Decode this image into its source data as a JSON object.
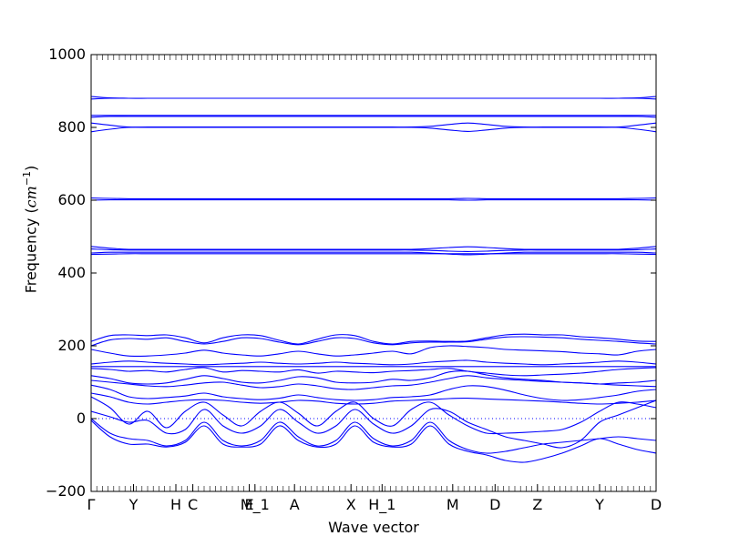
{
  "chart_data": {
    "type": "line",
    "xlabel": "Wave vector",
    "ylabel_prefix": "Frequency (",
    "ylabel_unit": "cm",
    "ylabel_exp": "−1",
    "ylabel_suffix": ")",
    "ylim": [
      -200,
      1000
    ],
    "yticks": [
      -200,
      0,
      200,
      400,
      600,
      800,
      1000
    ],
    "ytick_labels": [
      "−200",
      "0",
      "200",
      "400",
      "600",
      "800",
      "1000"
    ],
    "xlim": [
      0,
      20
    ],
    "xticks": [
      {
        "label": "Γ",
        "x": 0
      },
      {
        "label": "Y",
        "x": 1.5
      },
      {
        "label": "H",
        "x": 3.0
      },
      {
        "label": "C",
        "x": 3.6
      },
      {
        "label": "E",
        "x": 5.6
      },
      {
        "label": "M_1",
        "x": 5.8
      },
      {
        "label": "A",
        "x": 7.2
      },
      {
        "label": "X",
        "x": 9.2
      },
      {
        "label": "H_1",
        "x": 10.3
      },
      {
        "label": "M",
        "x": 12.8
      },
      {
        "label": "D",
        "x": 14.3
      },
      {
        "label": "Z",
        "x": 15.8
      },
      {
        "label": "Y",
        "x": 18.0
      },
      {
        "label": "D",
        "x": 20.0
      }
    ],
    "zero_line": true,
    "line_color": "#0000ff",
    "series": [
      {
        "y": [
          885,
          881,
          880,
          880,
          880,
          880,
          880,
          880,
          880,
          880,
          880,
          880,
          880,
          880,
          880,
          880,
          880,
          880,
          880,
          880,
          880,
          880,
          880,
          880,
          880,
          880,
          880,
          880,
          880,
          881,
          885
        ]
      },
      {
        "y": [
          878,
          880,
          880,
          880,
          880,
          880,
          880,
          880,
          880,
          880,
          880,
          880,
          880,
          880,
          880,
          880,
          880,
          880,
          880,
          880,
          880,
          880,
          880,
          880,
          880,
          880,
          880,
          880,
          880,
          880,
          878
        ]
      },
      {
        "y": [
          833,
          833,
          833,
          833,
          833,
          833,
          833,
          833,
          833,
          833,
          833,
          833,
          833,
          833,
          833,
          833,
          833,
          833,
          833,
          833,
          833,
          833,
          833,
          833,
          833,
          833,
          833,
          833,
          833,
          833,
          833
        ]
      },
      {
        "y": [
          828,
          830,
          830,
          830,
          830,
          830,
          830,
          830,
          830,
          830,
          830,
          830,
          830,
          830,
          830,
          830,
          830,
          830,
          830,
          830,
          830,
          830,
          830,
          830,
          830,
          830,
          830,
          830,
          830,
          830,
          828
        ]
      },
      {
        "y": [
          812,
          806,
          801,
          801,
          801,
          801,
          801,
          801,
          801,
          801,
          801,
          801,
          801,
          801,
          801,
          801,
          801,
          801,
          803,
          808,
          812,
          808,
          803,
          801,
          801,
          801,
          801,
          801,
          801,
          806,
          812
        ]
      },
      {
        "y": [
          788,
          795,
          800,
          800,
          800,
          800,
          800,
          800,
          800,
          800,
          800,
          800,
          800,
          800,
          800,
          800,
          800,
          800,
          798,
          793,
          789,
          793,
          798,
          800,
          800,
          800,
          800,
          800,
          800,
          795,
          788
        ]
      },
      {
        "y": [
          606,
          605,
          604,
          604,
          604,
          604,
          604,
          604,
          604,
          604,
          604,
          604,
          604,
          604,
          604,
          604,
          604,
          604,
          604,
          604,
          605,
          604,
          604,
          604,
          604,
          604,
          604,
          604,
          604,
          605,
          606
        ]
      },
      {
        "y": [
          600,
          601,
          601,
          601,
          601,
          601,
          601,
          601,
          601,
          601,
          601,
          601,
          601,
          601,
          601,
          601,
          601,
          601,
          601,
          601,
          600,
          601,
          601,
          601,
          601,
          601,
          601,
          601,
          601,
          601,
          600
        ]
      },
      {
        "y": [
          473,
          468,
          465,
          465,
          465,
          465,
          465,
          465,
          465,
          465,
          465,
          465,
          465,
          465,
          465,
          465,
          465,
          465,
          467,
          470,
          472,
          470,
          467,
          465,
          465,
          465,
          465,
          465,
          465,
          468,
          473
        ]
      },
      {
        "y": [
          466,
          464,
          463,
          463,
          463,
          463,
          463,
          463,
          463,
          463,
          463,
          463,
          463,
          463,
          463,
          463,
          463,
          463,
          462,
          460,
          459,
          460,
          462,
          463,
          463,
          463,
          463,
          463,
          463,
          464,
          466
        ]
      },
      {
        "y": [
          455,
          457,
          457,
          457,
          457,
          457,
          457,
          457,
          457,
          457,
          457,
          457,
          457,
          457,
          457,
          457,
          457,
          457,
          455,
          452,
          450,
          452,
          455,
          457,
          457,
          457,
          457,
          457,
          457,
          457,
          455
        ]
      },
      {
        "y": [
          451,
          452,
          453,
          453,
          453,
          453,
          453,
          453,
          453,
          453,
          453,
          453,
          453,
          453,
          453,
          453,
          453,
          453,
          453,
          453,
          453,
          453,
          453,
          453,
          453,
          453,
          453,
          453,
          453,
          452,
          451
        ]
      },
      {
        "y": [
          212,
          228,
          230,
          228,
          230,
          222,
          208,
          222,
          230,
          228,
          215,
          205,
          218,
          230,
          228,
          212,
          205,
          212,
          213,
          212,
          213,
          222,
          230,
          232,
          230,
          230,
          225,
          222,
          218,
          213,
          212
        ]
      },
      {
        "y": [
          200,
          216,
          220,
          218,
          222,
          212,
          205,
          212,
          222,
          220,
          210,
          203,
          212,
          222,
          220,
          208,
          203,
          208,
          210,
          210,
          211,
          218,
          224,
          225,
          224,
          222,
          218,
          215,
          212,
          208,
          205
        ]
      },
      {
        "y": [
          190,
          180,
          172,
          172,
          175,
          180,
          188,
          180,
          175,
          172,
          178,
          185,
          178,
          172,
          175,
          180,
          185,
          178,
          195,
          200,
          198,
          195,
          190,
          188,
          186,
          184,
          180,
          178,
          175,
          185,
          190
        ]
      },
      {
        "y": [
          150,
          155,
          158,
          155,
          152,
          150,
          148,
          150,
          152,
          155,
          152,
          150,
          152,
          155,
          152,
          150,
          148,
          150,
          155,
          158,
          160,
          155,
          152,
          150,
          148,
          150,
          152,
          155,
          158,
          155,
          150
        ]
      },
      {
        "y": [
          143,
          143,
          143,
          143,
          143,
          143,
          143,
          143,
          143,
          143,
          143,
          143,
          143,
          143,
          143,
          143,
          143,
          143,
          143,
          143,
          143,
          143,
          143,
          143,
          143,
          143,
          143,
          143,
          143,
          143,
          143
        ]
      },
      {
        "y": [
          138,
          135,
          130,
          132,
          128,
          135,
          140,
          128,
          132,
          130,
          128,
          134,
          125,
          130,
          128,
          126,
          130,
          132,
          135,
          138,
          130,
          125,
          120,
          118,
          120,
          122,
          125,
          130,
          135,
          138,
          140
        ]
      },
      {
        "y": [
          118,
          110,
          98,
          95,
          98,
          108,
          118,
          110,
          100,
          98,
          105,
          115,
          112,
          100,
          98,
          100,
          108,
          105,
          112,
          128,
          130,
          120,
          112,
          108,
          105,
          100,
          98,
          95,
          98,
          100,
          105
        ]
      },
      {
        "y": [
          105,
          100,
          95,
          90,
          88,
          92,
          98,
          100,
          92,
          85,
          88,
          95,
          90,
          82,
          80,
          85,
          90,
          92,
          100,
          110,
          118,
          112,
          108,
          105,
          102,
          100,
          98,
          95,
          92,
          90,
          88
        ]
      },
      {
        "y": [
          92,
          80,
          60,
          55,
          58,
          62,
          70,
          60,
          55,
          52,
          56,
          65,
          58,
          52,
          50,
          52,
          58,
          60,
          65,
          80,
          90,
          88,
          78,
          65,
          55,
          50,
          52,
          58,
          65,
          75,
          80
        ]
      },
      {
        "y": [
          70,
          60,
          45,
          40,
          45,
          50,
          52,
          50,
          45,
          42,
          45,
          50,
          48,
          42,
          40,
          42,
          48,
          50,
          52,
          55,
          56,
          54,
          52,
          50,
          48,
          45,
          42,
          40,
          42,
          45,
          50
        ]
      },
      {
        "y": [
          60,
          30,
          -15,
          20,
          -25,
          20,
          45,
          10,
          -20,
          20,
          45,
          15,
          -20,
          20,
          45,
          0,
          -20,
          25,
          45,
          10,
          -20,
          -40,
          -40,
          -38,
          -35,
          -30,
          -10,
          20,
          45,
          40,
          30
        ]
      },
      {
        "y": [
          0,
          -40,
          -55,
          -60,
          -75,
          -60,
          -10,
          -60,
          -75,
          -60,
          -10,
          -50,
          -75,
          -60,
          -10,
          -55,
          -75,
          -60,
          -10,
          -60,
          -85,
          -95,
          -90,
          -80,
          -70,
          -65,
          -60,
          -55,
          -50,
          -55,
          -60
        ]
      },
      {
        "y": [
          -5,
          -50,
          -70,
          -70,
          -78,
          -65,
          -20,
          -70,
          -78,
          -70,
          -20,
          -60,
          -78,
          -70,
          -20,
          -65,
          -78,
          -70,
          -20,
          -70,
          -90,
          -100,
          -115,
          -120,
          -110,
          -95,
          -75,
          -55,
          -70,
          -85,
          -95
        ]
      },
      {
        "y": [
          20,
          5,
          -10,
          -5,
          -40,
          -30,
          25,
          -20,
          -40,
          -20,
          25,
          -10,
          -40,
          -20,
          25,
          -15,
          -40,
          -20,
          25,
          20,
          -10,
          -30,
          -50,
          -60,
          -70,
          -80,
          -60,
          -10,
          10,
          30,
          50
        ]
      }
    ]
  }
}
